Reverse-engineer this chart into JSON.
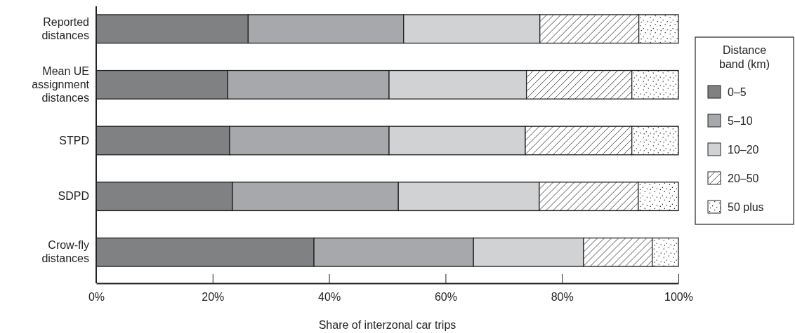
{
  "chart_data": {
    "type": "bar",
    "orientation": "horizontal",
    "stacked": true,
    "xlabel": "Share of interzonal car trips",
    "legend_title": "Distance band (km)",
    "legend": "right",
    "categories": [
      "Reported distances",
      "Mean UE assignment distances",
      "STPD",
      "SDPD",
      "Crow-fly distances"
    ],
    "xlim": [
      0,
      100
    ],
    "xticks": [
      {
        "value": 0,
        "label": "0%"
      },
      {
        "value": 20,
        "label": "20%"
      },
      {
        "value": 40,
        "label": "40%"
      },
      {
        "value": 60,
        "label": "60%"
      },
      {
        "value": 80,
        "label": "80%"
      },
      {
        "value": 100,
        "label": "100%"
      }
    ],
    "series": [
      {
        "name": "0–5",
        "color": "#808183",
        "values": [
          26.1,
          22.6,
          22.9,
          23.4,
          37.4
        ]
      },
      {
        "name": "5–10",
        "color": "#a7a8ab",
        "values": [
          26.7,
          27.7,
          27.4,
          28.5,
          27.4
        ]
      },
      {
        "name": "10–20",
        "color": "#d1d2d4",
        "values": [
          23.4,
          23.6,
          23.4,
          24.2,
          18.9
        ]
      },
      {
        "name": "20–50",
        "color": "#ffffff",
        "values": [
          17.0,
          18.1,
          18.3,
          17.0,
          11.8
        ]
      },
      {
        "name": "50 plus",
        "color": "#ffffff",
        "values": [
          6.8,
          8.0,
          8.0,
          6.9,
          4.5
        ]
      }
    ]
  }
}
